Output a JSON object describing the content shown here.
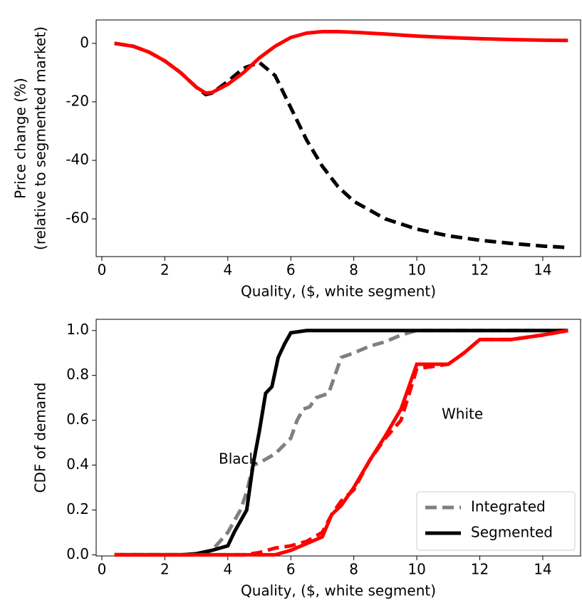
{
  "chart_data": [
    {
      "type": "line",
      "xlabel": "Quality, ($, white segment)",
      "ylabel": [
        "Price change (%)",
        "(relative to segmented market)"
      ],
      "xlim": [
        -0.18,
        15.2
      ],
      "ylim": [
        -72.9,
        8
      ],
      "xticks": [
        0,
        2,
        4,
        6,
        8,
        10,
        12,
        14
      ],
      "yticks": [
        -60,
        -40,
        -20,
        0
      ],
      "x": [
        0.4,
        1,
        1.5,
        2,
        2.5,
        3,
        3.3,
        3.5,
        4,
        4.5,
        5,
        5.5,
        6,
        6.5,
        7,
        7.5,
        8,
        9,
        10,
        11,
        12,
        13,
        14,
        14.8
      ],
      "series": [
        {
          "color": "#000000",
          "style": "dashed",
          "values": [
            0,
            -1,
            -3,
            -6,
            -10,
            -15,
            -17.5,
            -17,
            -13,
            -8.5,
            -6.5,
            -11,
            -22,
            -33,
            -42,
            -49,
            -54,
            -60,
            -63.5,
            -65.8,
            -67.3,
            -68.4,
            -69.3,
            -69.8
          ]
        },
        {
          "color": "#ff0000",
          "style": "solid",
          "values": [
            0,
            -1,
            -3,
            -6,
            -10,
            -15,
            -17,
            -16.8,
            -14,
            -10,
            -5,
            -1,
            2,
            3.5,
            4,
            4,
            3.8,
            3.2,
            2.5,
            2,
            1.6,
            1.3,
            1.1,
            1
          ]
        }
      ]
    },
    {
      "type": "line",
      "xlabel": "Quality, ($, white segment)",
      "ylabel": [
        "CDF of demand"
      ],
      "xlim": [
        -0.18,
        15.2
      ],
      "ylim": [
        -0.005,
        1.05
      ],
      "xticks": [
        0,
        2,
        4,
        6,
        8,
        10,
        12,
        14
      ],
      "yticks": [
        {
          "value": 0,
          "label": "0.0"
        },
        {
          "value": 0.2,
          "label": "0.2"
        },
        {
          "value": 0.4,
          "label": "0.4"
        },
        {
          "value": 0.6,
          "label": "0.6"
        },
        {
          "value": 0.8,
          "label": "0.8"
        },
        {
          "value": 1,
          "label": "1.0"
        }
      ],
      "legend_position": "lower right",
      "legend": [
        {
          "name": "Integrated",
          "color": "#808080",
          "style": "dashed"
        },
        {
          "name": "Segmented",
          "color": "#000000",
          "style": "solid"
        }
      ],
      "annotations": [
        {
          "text": "Black",
          "color": "#000000"
        },
        {
          "text": "White",
          "color": "#ff0000"
        }
      ],
      "series": [
        {
          "color": "#808080",
          "style": "dashed",
          "x": [
            0.4,
            3,
            3.5,
            4,
            4.2,
            4.4,
            4.6,
            4.8,
            5,
            5.5,
            6,
            6.2,
            6.4,
            6.6,
            6.8,
            7.2,
            7.6,
            8,
            8.5,
            9,
            9.5,
            10,
            14.8
          ],
          "values": [
            0,
            0,
            0.02,
            0.1,
            0.15,
            0.2,
            0.28,
            0.4,
            0.41,
            0.45,
            0.52,
            0.6,
            0.65,
            0.66,
            0.7,
            0.72,
            0.88,
            0.9,
            0.93,
            0.95,
            0.98,
            1,
            1
          ]
        },
        {
          "color": "#000000",
          "style": "solid",
          "x": [
            0.4,
            2.5,
            3,
            3.5,
            4,
            4.2,
            4.4,
            4.6,
            4.8,
            5,
            5.2,
            5.4,
            5.6,
            5.8,
            6,
            6.5,
            14.8
          ],
          "values": [
            0,
            0,
            0.005,
            0.02,
            0.04,
            0.1,
            0.15,
            0.2,
            0.4,
            0.55,
            0.72,
            0.75,
            0.88,
            0.94,
            0.99,
            1,
            1
          ]
        },
        {
          "color": "#ff0000",
          "style": "dashed",
          "x": [
            0.4,
            4.5,
            5,
            5.5,
            6,
            6.5,
            7,
            7.3,
            7.6,
            8,
            8.5,
            9,
            9.5,
            10,
            10.5,
            11,
            11.5,
            12,
            13,
            14,
            14.8
          ],
          "values": [
            0,
            0,
            0.01,
            0.03,
            0.04,
            0.06,
            0.1,
            0.18,
            0.24,
            0.29,
            0.42,
            0.52,
            0.6,
            0.83,
            0.84,
            0.85,
            0.9,
            0.96,
            0.96,
            0.98,
            1
          ]
        },
        {
          "color": "#ff0000",
          "style": "solid",
          "x": [
            0.4,
            5.5,
            6,
            6.5,
            7,
            7.3,
            7.6,
            8,
            8.5,
            9,
            9.5,
            10,
            11,
            11.5,
            12,
            13,
            14,
            14.8
          ],
          "values": [
            0,
            0,
            0.02,
            0.05,
            0.08,
            0.18,
            0.22,
            0.3,
            0.42,
            0.53,
            0.65,
            0.85,
            0.85,
            0.9,
            0.96,
            0.96,
            0.98,
            1
          ]
        }
      ]
    }
  ]
}
